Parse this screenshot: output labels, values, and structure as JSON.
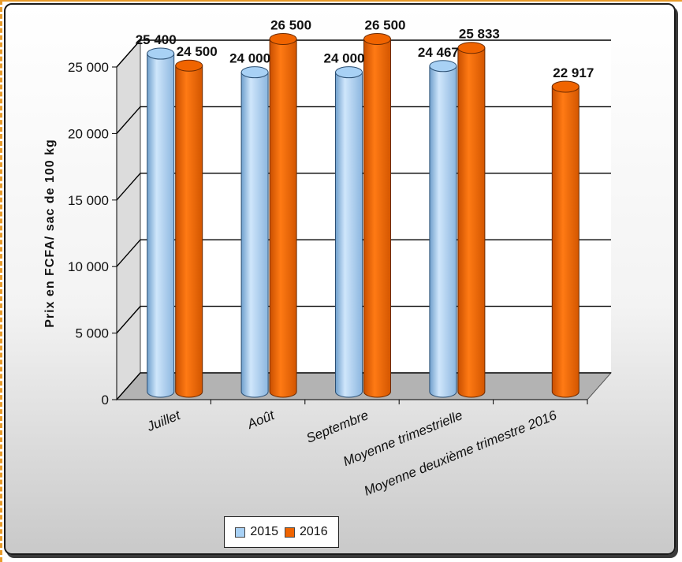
{
  "chart_data": {
    "type": "bar",
    "style": "3d-cylinder",
    "categories": [
      "Juillet",
      "Août",
      "Septembre",
      "Moyenne trimestrielle",
      "Moyenne deuxième trimestre 2016"
    ],
    "series": [
      {
        "name": "2015",
        "color": "#a8d1f5",
        "values": [
          25400,
          24000,
          24000,
          24467,
          null
        ]
      },
      {
        "name": "2016",
        "color": "#f06400",
        "values": [
          24500,
          26500,
          26500,
          25833,
          22917
        ]
      }
    ],
    "data_labels": {
      "2015": [
        "25 400",
        "24 000",
        "24 000",
        "24 467",
        ""
      ],
      "2016": [
        "24 500",
        "26 500",
        "26 500",
        "25 833",
        "22 917"
      ]
    },
    "ylabel": "Prix en FCFA/ sac de 100 kg",
    "xlabel": "",
    "ylim": [
      0,
      25000
    ],
    "yticks": [
      0,
      5000,
      10000,
      15000,
      20000,
      25000
    ],
    "ytick_labels": [
      "0",
      "5 000",
      "10 000",
      "15 000",
      "20 000",
      "25 000"
    ],
    "grid": true,
    "legend": {
      "position": "bottom-left",
      "items": [
        "2015",
        "2016"
      ]
    }
  }
}
